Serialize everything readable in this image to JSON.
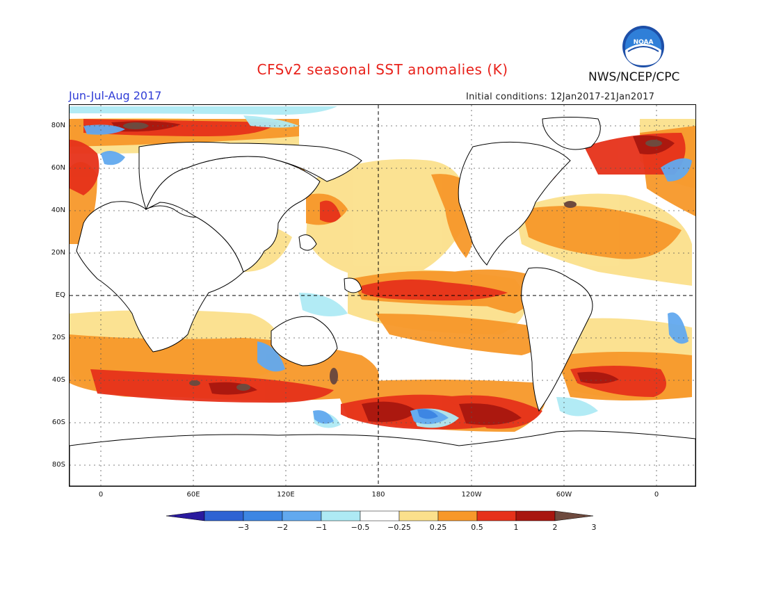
{
  "title": "CFSv2 seasonal SST anomalies (K)",
  "center_label": "NWS/NCEP/CPC",
  "logo_text": "NOAA",
  "period": "Jun-Jul-Aug 2017",
  "initial_conditions": "Initial conditions: 12Jan2017-21Jan2017",
  "lat_ticks": [
    "80N",
    "60N",
    "40N",
    "20N",
    "EQ",
    "20S",
    "40S",
    "60S",
    "80S"
  ],
  "lon_ticks": [
    "0",
    "60E",
    "120E",
    "180",
    "120W",
    "60W",
    "0"
  ],
  "colorbar": {
    "labels": [
      "−3",
      "−2",
      "−1",
      "−0.5",
      "−0.25",
      "0.25",
      "0.5",
      "1",
      "2",
      "3"
    ],
    "colors": [
      "#2a1a9e",
      "#2f63d3",
      "#3d86e3",
      "#62a9ef",
      "#aeeaf4",
      "#ffffff",
      "#fbe08c",
      "#f7982a",
      "#e6321a",
      "#a8160f",
      "#6e4a3e"
    ]
  },
  "map_colors": {
    "warm_light": "#fbe08c",
    "warm": "#f7982a",
    "hot": "#e6321a",
    "very_hot": "#a8160f",
    "extreme": "#6e4a3e",
    "cool_light": "#aeeaf4",
    "cool": "#62a9ef",
    "cold": "#3d86e3",
    "very_cold": "#2a1a9e"
  }
}
